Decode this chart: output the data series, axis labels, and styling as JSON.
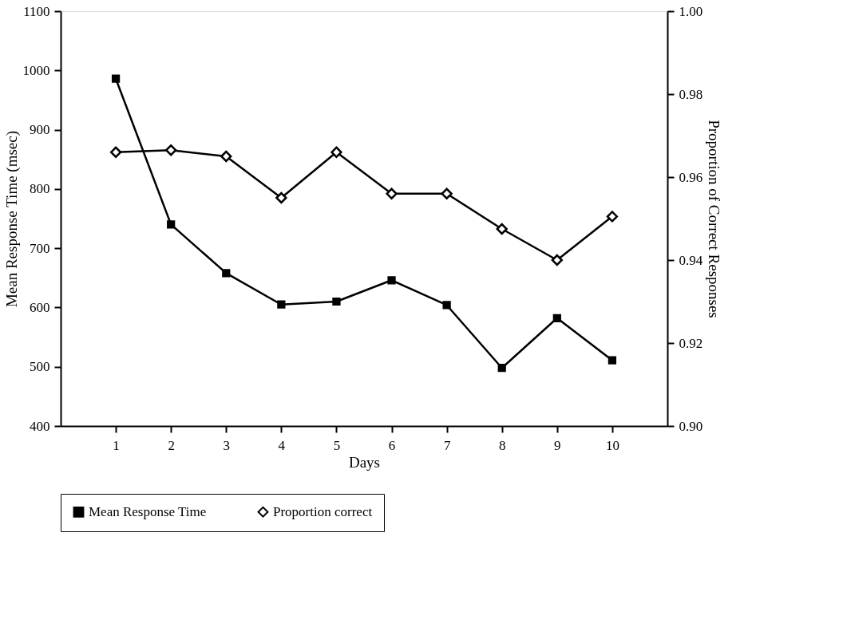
{
  "chart_data": {
    "type": "line",
    "xlabel": "Days",
    "ylabel": "Mean Response Time (msec)",
    "y2label": "Proportion of Correct Responses",
    "x": [
      1,
      2,
      3,
      4,
      5,
      6,
      7,
      8,
      9,
      10
    ],
    "xlim": [
      0,
      11
    ],
    "xticks": [
      1,
      2,
      3,
      4,
      5,
      6,
      7,
      8,
      9,
      10
    ],
    "ylim": [
      400,
      1100
    ],
    "yticks": [
      400,
      500,
      600,
      700,
      800,
      900,
      1000,
      1100
    ],
    "y2lim": [
      0.9,
      1.0
    ],
    "y2ticks": [
      {
        "value": 0.9,
        "label": "0.90"
      },
      {
        "value": 0.92,
        "label": "0.92"
      },
      {
        "value": 0.94,
        "label": "0.94"
      },
      {
        "value": 0.96,
        "label": "0.96"
      },
      {
        "value": 0.98,
        "label": "0.98"
      },
      {
        "value": 1.0,
        "label": "1.00"
      }
    ],
    "series": [
      {
        "name": "Mean Response Time",
        "color": "#000000",
        "marker": "square",
        "values": [
          986,
          740,
          658,
          605,
          610,
          646,
          604,
          498,
          582,
          511
        ]
      },
      {
        "name": "Proportion correct",
        "color": "#000000",
        "marker": "diamond",
        "axis": "y2",
        "values": [
          0.966,
          0.9665,
          0.965,
          0.955,
          0.966,
          0.956,
          0.956,
          0.9475,
          0.94,
          0.9505
        ]
      }
    ],
    "grid": false,
    "legend": "bottom",
    "line_style": "solid"
  }
}
